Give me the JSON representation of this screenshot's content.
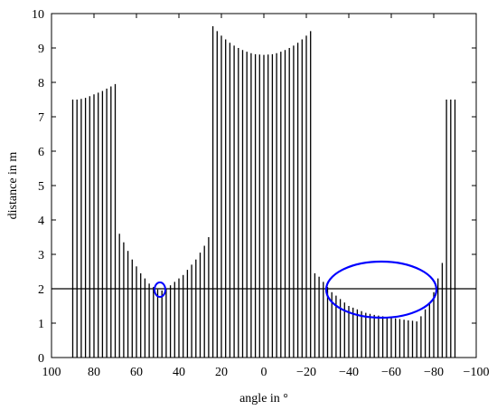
{
  "chart_data": {
    "type": "stem",
    "xlabel": "angle in °",
    "ylabel": "distance in m",
    "x": [
      90,
      88,
      86,
      84,
      82,
      80,
      78,
      76,
      74,
      72,
      70,
      68,
      66,
      64,
      62,
      60,
      58,
      56,
      54,
      52,
      50,
      48,
      46,
      44,
      42,
      40,
      38,
      36,
      34,
      32,
      30,
      28,
      26,
      24,
      22,
      20,
      18,
      16,
      14,
      12,
      10,
      8,
      6,
      4,
      2,
      0,
      -2,
      -4,
      -6,
      -8,
      -10,
      -12,
      -14,
      -16,
      -18,
      -20,
      -22,
      -24,
      -26,
      -28,
      -30,
      -32,
      -34,
      -36,
      -38,
      -40,
      -42,
      -44,
      -46,
      -48,
      -50,
      -52,
      -54,
      -56,
      -58,
      -60,
      -62,
      -64,
      -66,
      -68,
      -70,
      -72,
      -74,
      -76,
      -78,
      -80,
      -82,
      -84,
      -86,
      -88,
      -90
    ],
    "values": [
      7.5,
      7.5,
      7.52,
      7.55,
      7.6,
      7.65,
      7.7,
      7.75,
      7.82,
      7.88,
      7.95,
      3.6,
      3.35,
      3.1,
      2.85,
      2.65,
      2.45,
      2.3,
      2.15,
      2.05,
      1.98,
      1.95,
      2.0,
      2.1,
      2.2,
      2.3,
      2.4,
      2.55,
      2.7,
      2.85,
      3.05,
      3.25,
      3.5,
      9.63,
      9.49,
      9.36,
      9.25,
      9.15,
      9.07,
      9.0,
      8.94,
      8.89,
      8.85,
      8.82,
      8.81,
      8.8,
      8.81,
      8.82,
      8.85,
      8.89,
      8.94,
      9.0,
      9.07,
      9.15,
      9.25,
      9.36,
      9.49,
      2.45,
      2.35,
      2.2,
      2.05,
      1.9,
      1.8,
      1.7,
      1.6,
      1.5,
      1.45,
      1.4,
      1.35,
      1.3,
      1.27,
      1.24,
      1.22,
      1.2,
      1.18,
      1.16,
      1.14,
      1.12,
      1.1,
      1.08,
      1.07,
      1.05,
      1.2,
      1.4,
      1.6,
      1.9,
      2.3,
      2.75,
      7.5,
      7.5,
      7.5
    ],
    "color": "#000000",
    "reference_line": 2,
    "annotation_color": "#0000ff",
    "xlim": [
      100,
      -100
    ],
    "xticks": [
      100,
      80,
      60,
      40,
      20,
      0,
      {
        "value": -20,
        "label": "−20"
      },
      {
        "value": -40,
        "label": "−40"
      },
      {
        "value": -60,
        "label": "−60"
      },
      {
        "value": -80,
        "label": "−80"
      },
      {
        "value": -100,
        "label": "−100"
      }
    ],
    "ylim": [
      0,
      10
    ],
    "yticks": [
      0,
      1,
      2,
      3,
      4,
      5,
      6,
      7,
      8,
      9,
      10
    ]
  }
}
